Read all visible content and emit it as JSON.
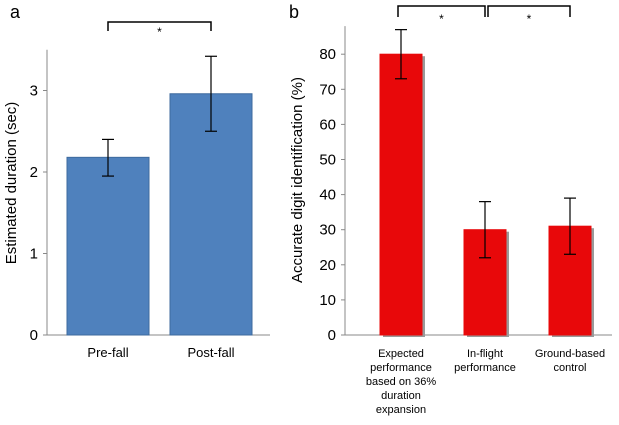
{
  "chart_data": [
    {
      "panel_label": "a",
      "type": "bar",
      "categories": [
        "Pre-fall",
        "Post-fall"
      ],
      "values": [
        2.18,
        2.96
      ],
      "errors": [
        [
          1.95,
          2.4
        ],
        [
          2.5,
          3.42
        ]
      ],
      "ylabel": "Estimated duration (sec)",
      "xlabel": "",
      "ylim": [
        0,
        3.5
      ],
      "yticks": [
        "0",
        "1",
        "2",
        "3"
      ],
      "bar_color": "#4f81bd",
      "significance": [
        {
          "from": 0,
          "to": 1,
          "label": "*"
        }
      ]
    },
    {
      "panel_label": "b",
      "type": "bar",
      "categories": [
        [
          "Expected",
          "performance",
          "based on 36%",
          "duration",
          "expansion"
        ],
        [
          "In-flight",
          "performance"
        ],
        [
          "Ground-based",
          "control"
        ]
      ],
      "values": [
        80,
        30,
        31
      ],
      "errors": [
        [
          73,
          87
        ],
        [
          22,
          38
        ],
        [
          23,
          39
        ]
      ],
      "ylabel": "Accurate digit identification (%)",
      "xlabel": "",
      "ylim": [
        0,
        88
      ],
      "yticks": [
        "0",
        "10",
        "20",
        "30",
        "40",
        "50",
        "60",
        "70",
        "80"
      ],
      "bar_color": "#e8080a",
      "significance": [
        {
          "from": 0,
          "to": 1,
          "label": "*"
        },
        {
          "from": 1,
          "to": 2,
          "label": "*"
        }
      ]
    }
  ]
}
